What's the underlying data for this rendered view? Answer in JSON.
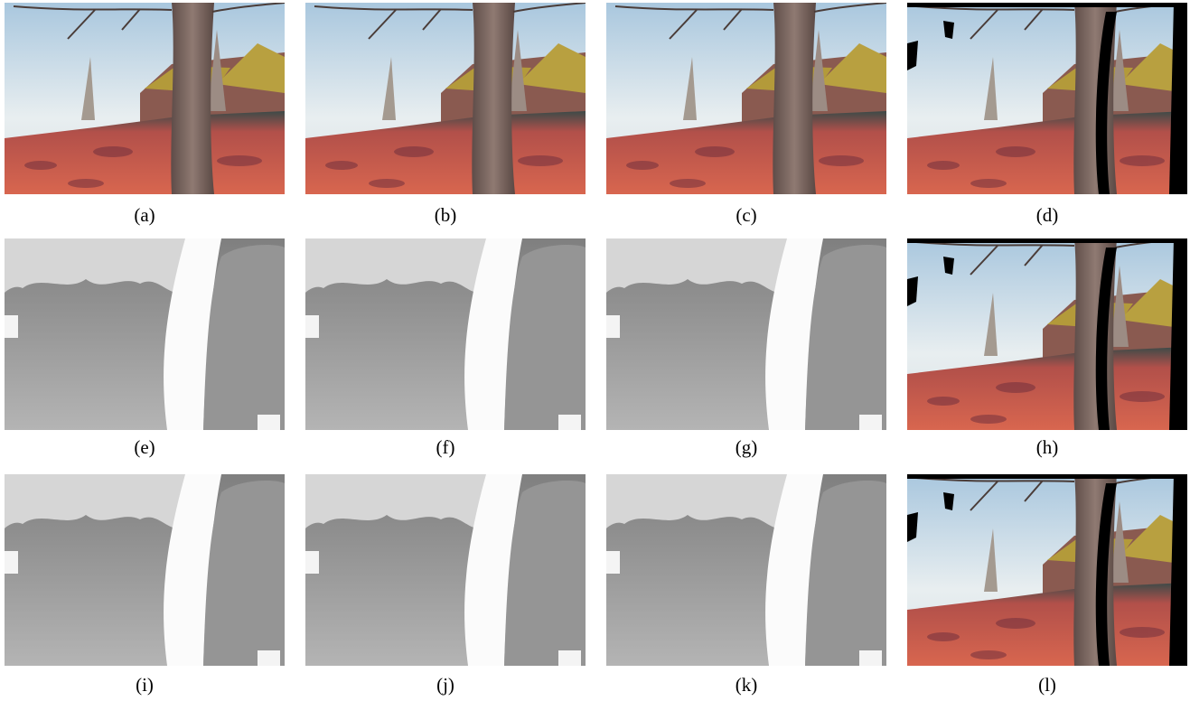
{
  "figure": {
    "panels": [
      {
        "label": "(a)"
      },
      {
        "label": "(b)"
      },
      {
        "label": "(c)"
      },
      {
        "label": "(d)"
      },
      {
        "label": "(e)"
      },
      {
        "label": "(f)"
      },
      {
        "label": "(g)"
      },
      {
        "label": "(h)"
      },
      {
        "label": "(i)"
      },
      {
        "label": "(j)"
      },
      {
        "label": "(k)"
      },
      {
        "label": "(l)"
      }
    ]
  }
}
